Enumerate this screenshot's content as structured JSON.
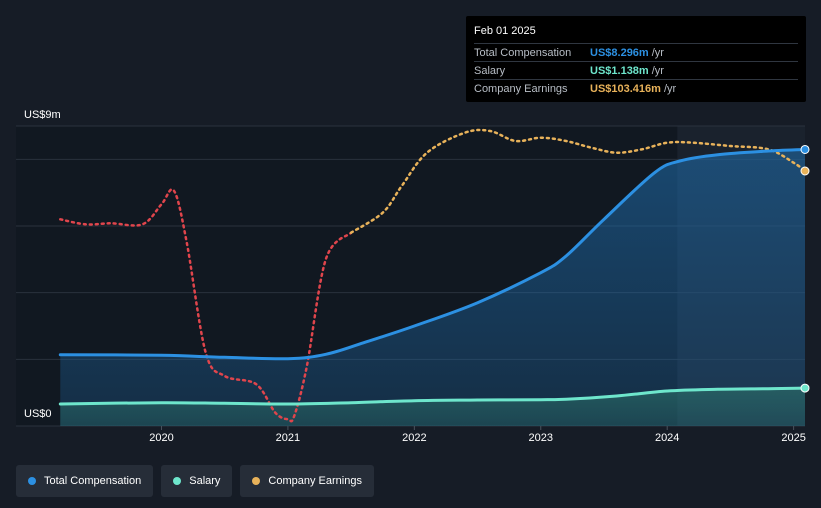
{
  "chart_data": {
    "type": "line",
    "y_axis": {
      "top_label": "US$9m",
      "bottom_label": "US$0",
      "ylim": [
        0,
        9
      ]
    },
    "x_ticks": [
      "2020",
      "2021",
      "2022",
      "2023",
      "2024",
      "2025"
    ],
    "xlim": [
      2019.1,
      2025.09
    ],
    "gridlines": [
      0,
      2,
      4,
      6,
      8,
      9
    ],
    "forecast_start": 2024.08,
    "series": [
      {
        "name": "Total Compensation",
        "key": "total",
        "color": "#2c90e2",
        "style": "solid",
        "area": true,
        "x": [
          2019.2,
          2020.0,
          2020.5,
          2021.0,
          2021.3,
          2021.6,
          2022.0,
          2022.5,
          2023.0,
          2023.2,
          2023.5,
          2023.9,
          2024.1,
          2024.4,
          2024.8,
          2025.09
        ],
        "y": [
          2.14,
          2.12,
          2.06,
          2.02,
          2.15,
          2.5,
          3.0,
          3.7,
          4.6,
          5.1,
          6.2,
          7.6,
          7.95,
          8.14,
          8.25,
          8.296
        ]
      },
      {
        "name": "Salary",
        "key": "salary",
        "color": "#6ee6cc",
        "style": "solid",
        "area": true,
        "x": [
          2019.2,
          2020.0,
          2020.5,
          2021.0,
          2021.5,
          2022.0,
          2022.5,
          2023.0,
          2023.2,
          2023.6,
          2024.0,
          2024.4,
          2024.8,
          2025.09
        ],
        "y": [
          0.66,
          0.7,
          0.68,
          0.66,
          0.7,
          0.76,
          0.78,
          0.79,
          0.8,
          0.9,
          1.05,
          1.1,
          1.12,
          1.138
        ]
      },
      {
        "name": "Company Earnings",
        "key": "earnings",
        "color_past": "#e0454c",
        "color_future": "#e8b25a",
        "style": "dotted",
        "x": [
          2019.2,
          2019.4,
          2019.6,
          2019.85,
          2020.0,
          2020.1,
          2020.2,
          2020.35,
          2020.5,
          2020.75,
          2020.9,
          2021.0,
          2021.05,
          2021.15,
          2021.3,
          2021.5,
          2021.75,
          2021.9,
          2022.1,
          2022.4,
          2022.6,
          2022.8,
          2023.0,
          2023.2,
          2023.4,
          2023.6,
          2023.8,
          2024.0,
          2024.2,
          2024.5,
          2024.8,
          2025.0,
          2025.09
        ],
        "y": [
          6.2,
          6.05,
          6.08,
          6.05,
          6.65,
          7.05,
          5.5,
          2.2,
          1.5,
          1.25,
          0.4,
          0.2,
          0.3,
          1.8,
          5.0,
          5.8,
          6.4,
          7.2,
          8.2,
          8.8,
          8.85,
          8.55,
          8.65,
          8.55,
          8.35,
          8.2,
          8.3,
          8.5,
          8.5,
          8.4,
          8.3,
          7.9,
          7.65
        ],
        "color_switch_x": 2021.5
      }
    ],
    "tooltip": {
      "date": "Feb 01 2025",
      "rows": [
        {
          "label": "Total Compensation",
          "value": "US$8.296m",
          "unit": "/yr",
          "color": "#2c90e2"
        },
        {
          "label": "Salary",
          "value": "US$1.138m",
          "unit": "/yr",
          "color": "#6ee6cc"
        },
        {
          "label": "Company Earnings",
          "value": "US$103.416m",
          "unit": "/yr",
          "color": "#e8b25a"
        }
      ]
    },
    "legend": [
      {
        "label": "Total Compensation",
        "color": "#2c90e2"
      },
      {
        "label": "Salary",
        "color": "#6ee6cc"
      },
      {
        "label": "Company Earnings",
        "color": "#e8b25a"
      }
    ]
  }
}
